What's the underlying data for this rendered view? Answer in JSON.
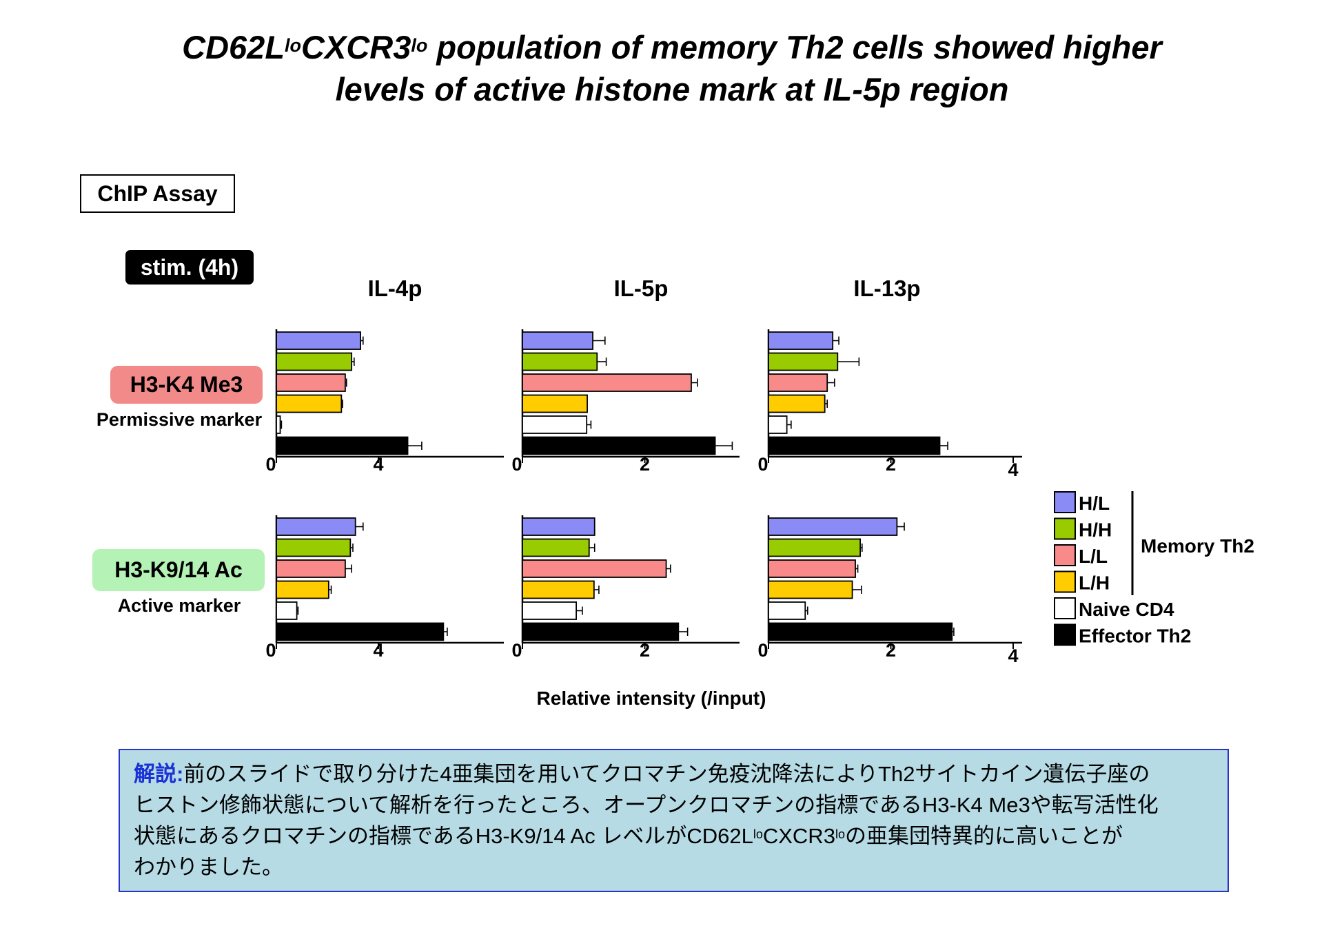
{
  "title": {
    "part1": "CD62L",
    "sup1": "lo",
    "part2": "CXCR3",
    "sup2": "lo",
    "part3": " population of memory Th2 cells showed higher",
    "line2": "levels of active histone mark at IL-5p region"
  },
  "assay_label": "ChIP Assay",
  "stim_label": "stim. (4h)",
  "rows": [
    {
      "mark": "H3-K4 Me3",
      "sub": "Permissive marker",
      "color": "#f28a8a"
    },
    {
      "mark": "H3-K9/14 Ac",
      "sub": "Active marker",
      "color": "#b5f2b5"
    }
  ],
  "chart_data": {
    "type": "bar",
    "orientation": "horizontal",
    "panels": [
      "IL-4p",
      "IL-5p",
      "IL-13p"
    ],
    "xlabel": "Relative intensity (/input)",
    "legend": {
      "group_label": "Memory Th2",
      "items": [
        {
          "name": "H/L",
          "color": "#8b8bf6"
        },
        {
          "name": "H/H",
          "color": "#99cc00"
        },
        {
          "name": "L/L",
          "color": "#f88a8a"
        },
        {
          "name": "L/H",
          "color": "#ffcc00"
        },
        {
          "name": "Naive CD4",
          "color": "#ffffff"
        },
        {
          "name": "Effector Th2",
          "color": "#000000"
        }
      ]
    },
    "charts": [
      {
        "mark": "H3-K4 Me3",
        "panel": "IL-4p",
        "xticks": [
          "0",
          "4"
        ],
        "xlim": [
          0,
          10
        ],
        "series": [
          {
            "name": "H/L",
            "value": 3.3,
            "error": 0.1
          },
          {
            "name": "H/H",
            "value": 2.95,
            "error": 0.1
          },
          {
            "name": "L/L",
            "value": 2.7,
            "error": 0.05
          },
          {
            "name": "L/H",
            "value": 2.55,
            "error": 0.05
          },
          {
            "name": "Naive CD4",
            "value": 0.15,
            "error": 0.05
          },
          {
            "name": "Effector Th2",
            "value": 5.15,
            "error": 0.55
          }
        ]
      },
      {
        "mark": "H3-K4 Me3",
        "panel": "IL-5p",
        "xticks": [
          "0",
          "2"
        ],
        "xlim": [
          0,
          4
        ],
        "series": [
          {
            "name": "H/L",
            "value": 1.15,
            "error": 0.2
          },
          {
            "name": "H/H",
            "value": 1.22,
            "error": 0.15
          },
          {
            "name": "L/L",
            "value": 2.76,
            "error": 0.1
          },
          {
            "name": "L/H",
            "value": 1.06,
            "error": 0.0
          },
          {
            "name": "Naive CD4",
            "value": 1.05,
            "error": 0.07
          },
          {
            "name": "Effector Th2",
            "value": 3.15,
            "error": 0.28
          }
        ]
      },
      {
        "mark": "H3-K4 Me3",
        "panel": "IL-13p",
        "xticks": [
          "0",
          "2",
          "4"
        ],
        "xlim": [
          0,
          4
        ],
        "series": [
          {
            "name": "H/L",
            "value": 1.05,
            "error": 0.1
          },
          {
            "name": "H/H",
            "value": 1.13,
            "error": 0.35
          },
          {
            "name": "L/L",
            "value": 0.96,
            "error": 0.12
          },
          {
            "name": "L/H",
            "value": 0.92,
            "error": 0.04
          },
          {
            "name": "Naive CD4",
            "value": 0.3,
            "error": 0.07
          },
          {
            "name": "Effector Th2",
            "value": 2.8,
            "error": 0.13
          }
        ]
      },
      {
        "mark": "H3-K9/14 Ac",
        "panel": "IL-4p",
        "xticks": [
          "0",
          "4"
        ],
        "xlim": [
          0,
          10
        ],
        "series": [
          {
            "name": "H/L",
            "value": 3.1,
            "error": 0.3
          },
          {
            "name": "H/H",
            "value": 2.9,
            "error": 0.1
          },
          {
            "name": "L/L",
            "value": 2.7,
            "error": 0.25
          },
          {
            "name": "L/H",
            "value": 2.05,
            "error": 0.1
          },
          {
            "name": "Naive CD4",
            "value": 0.8,
            "error": 0.05
          },
          {
            "name": "Effector Th2",
            "value": 6.55,
            "error": 0.15
          }
        ]
      },
      {
        "mark": "H3-K9/14 Ac",
        "panel": "IL-5p",
        "xticks": [
          "0",
          "2"
        ],
        "xlim": [
          0,
          4
        ],
        "series": [
          {
            "name": "H/L",
            "value": 1.18,
            "error": 0.0
          },
          {
            "name": "H/H",
            "value": 1.09,
            "error": 0.09
          },
          {
            "name": "L/L",
            "value": 2.35,
            "error": 0.07
          },
          {
            "name": "L/H",
            "value": 1.17,
            "error": 0.08
          },
          {
            "name": "Naive CD4",
            "value": 0.88,
            "error": 0.1
          },
          {
            "name": "Effector Th2",
            "value": 2.55,
            "error": 0.15
          }
        ]
      },
      {
        "mark": "H3-K9/14 Ac",
        "panel": "IL-13p",
        "xticks": [
          "0",
          "2",
          "4"
        ],
        "xlim": [
          0,
          4
        ],
        "series": [
          {
            "name": "H/L",
            "value": 2.1,
            "error": 0.12
          },
          {
            "name": "H/H",
            "value": 1.5,
            "error": 0.03
          },
          {
            "name": "L/L",
            "value": 1.42,
            "error": 0.04
          },
          {
            "name": "L/H",
            "value": 1.37,
            "error": 0.15
          },
          {
            "name": "Naive CD4",
            "value": 0.6,
            "error": 0.04
          },
          {
            "name": "Effector Th2",
            "value": 3.0,
            "error": 0.03
          }
        ]
      }
    ]
  },
  "note": {
    "heading": "解説",
    "sep": ":",
    "line1": "前のスライドで取り分けた4亜集団を用いてクロマチン免疫沈降法によりTh2サイトカイン遺伝子座の",
    "line2": "ヒストン修飾状態について解析を行ったところ、オープンクロマチンの指標であるH3-K4 Me3や転写活性化",
    "line3a": "状態にあるクロマチンの指標であるH3-K9/14 Ac レベルがCD62L",
    "line3sup1": "lo",
    "line3b": "CXCR3",
    "line3sup2": "lo",
    "line3c": "の亜集団特異的に高いことが",
    "line4": "わかりました。"
  }
}
